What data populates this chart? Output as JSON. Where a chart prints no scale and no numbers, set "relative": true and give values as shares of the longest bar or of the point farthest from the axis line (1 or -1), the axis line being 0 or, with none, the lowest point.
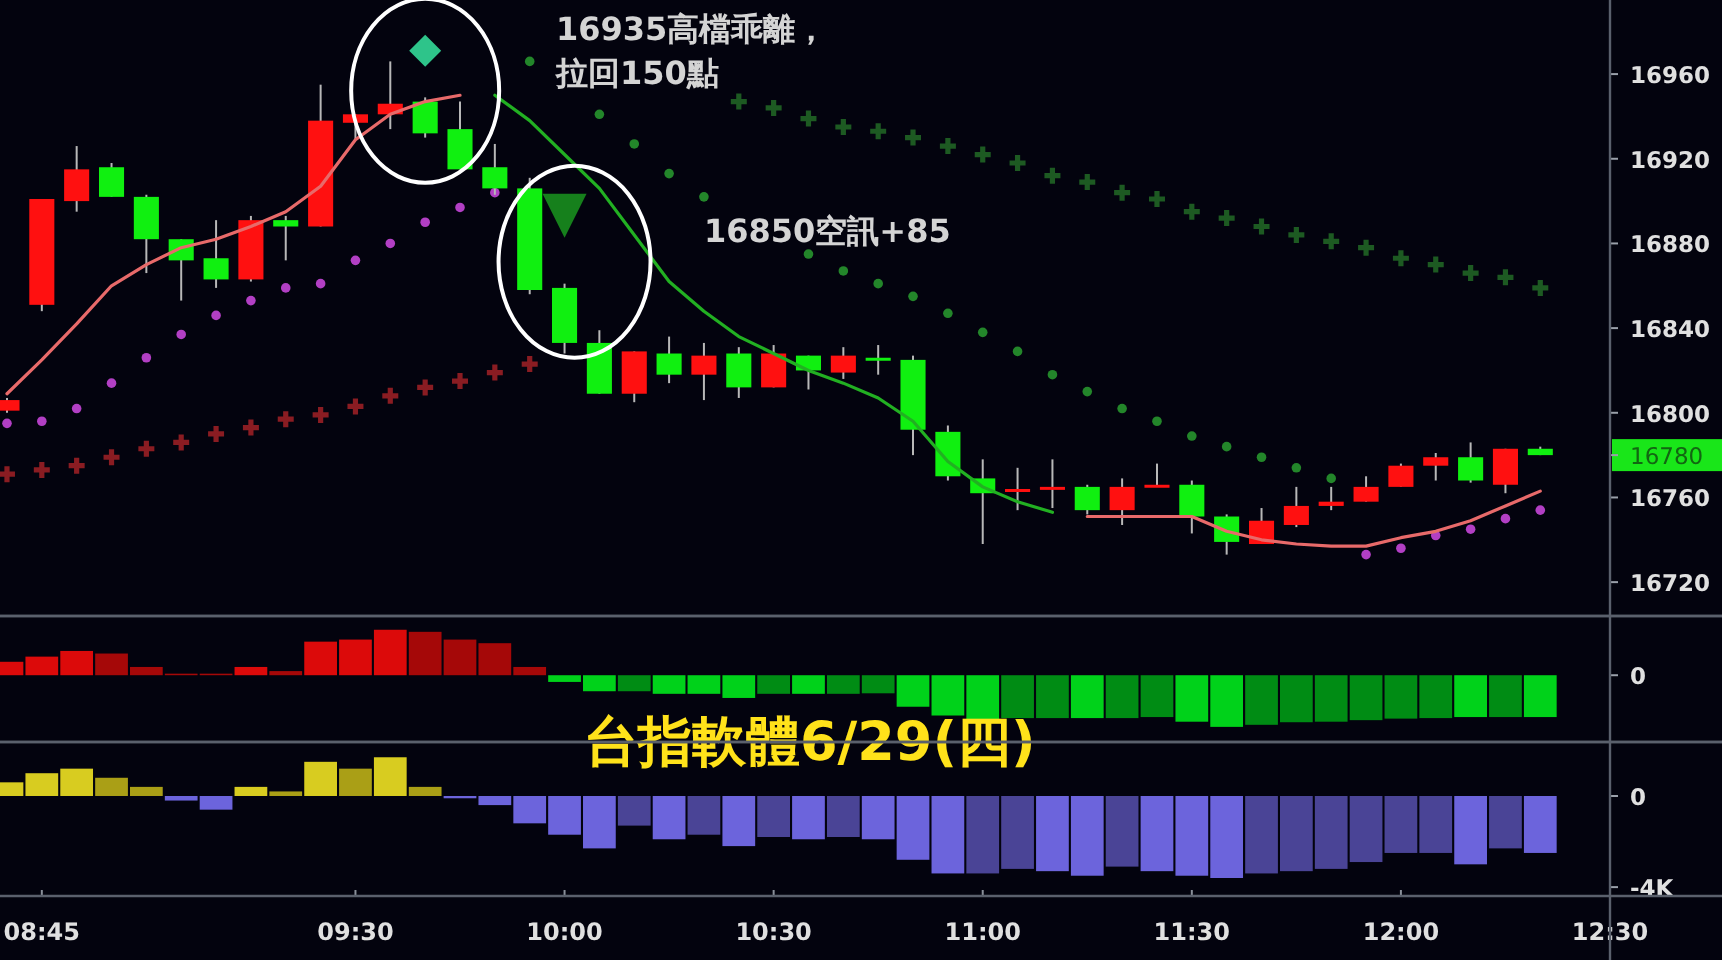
{
  "chart_data": [
    {
      "type": "candlestick",
      "x": [
        8.6667,
        8.75,
        8.8333,
        8.9167,
        9,
        9.0833,
        9.1667,
        9.25,
        9.3333,
        9.4167,
        9.5,
        9.5833,
        9.6667,
        9.75,
        9.8333,
        9.9167,
        10,
        10.0833,
        10.1667,
        10.25,
        10.3333,
        10.4167,
        10.5,
        10.5833,
        10.6667,
        10.75,
        10.8333,
        10.9167,
        11,
        11.0833,
        11.1667,
        11.25,
        11.3333,
        11.4167,
        11.5,
        11.5833,
        11.6667,
        11.75,
        11.8333,
        11.9167,
        12,
        12.0833,
        12.1667,
        12.25,
        12.3333
      ],
      "ohlc": [
        [
          16801,
          16807,
          16800,
          16806
        ],
        [
          16851,
          16901,
          16848,
          16901
        ],
        [
          16900,
          16926,
          16895,
          16915
        ],
        [
          16916,
          16918,
          16902,
          16902
        ],
        [
          16902,
          16903,
          16866,
          16882
        ],
        [
          16882,
          16882,
          16853,
          16872
        ],
        [
          16873,
          16891,
          16859,
          16863
        ],
        [
          16863,
          16893,
          16862,
          16891
        ],
        [
          16891,
          16893,
          16872,
          16888
        ],
        [
          16888,
          16955,
          16888,
          16938
        ],
        [
          16937,
          16941,
          16929,
          16941
        ],
        [
          16941,
          16966,
          16934,
          16946
        ],
        [
          16947,
          16949,
          16930,
          16932
        ],
        [
          16934,
          16947,
          16915,
          16915
        ],
        [
          16916,
          16927,
          16903,
          16906
        ],
        [
          16906,
          16911,
          16856,
          16858
        ],
        [
          16859,
          16861,
          16828,
          16833
        ],
        [
          16833,
          16839,
          16809,
          16809
        ],
        [
          16809,
          16829,
          16805,
          16829
        ],
        [
          16828,
          16836,
          16814,
          16818
        ],
        [
          16818,
          16833,
          16806,
          16827
        ],
        [
          16828,
          16831,
          16807,
          16812
        ],
        [
          16812,
          16832,
          16812,
          16828
        ],
        [
          16827,
          16827,
          16811,
          16820
        ],
        [
          16819,
          16831,
          16816,
          16827
        ],
        [
          16826,
          16832,
          16818,
          16825
        ],
        [
          16825,
          16827,
          16780,
          16792
        ],
        [
          16791,
          16794,
          16768,
          16770
        ],
        [
          16769,
          16778,
          16738,
          16762
        ],
        [
          16763,
          16774,
          16754,
          16764
        ],
        [
          16764,
          16778,
          16755,
          16765
        ],
        [
          16765,
          16766,
          16752,
          16754
        ],
        [
          16754,
          16769,
          16747,
          16765
        ],
        [
          16765,
          16776,
          16765,
          16766
        ],
        [
          16766,
          16768,
          16743,
          16751
        ],
        [
          16751,
          16752,
          16733,
          16739
        ],
        [
          16738,
          16755,
          16738,
          16749
        ],
        [
          16747,
          16765,
          16746,
          16756
        ],
        [
          16756,
          16765,
          16754,
          16758
        ],
        [
          16758,
          16770,
          16758,
          16765
        ],
        [
          16765,
          16776,
          16765,
          16775
        ],
        [
          16775,
          16781,
          16768,
          16779
        ],
        [
          16779,
          16786,
          16767,
          16768
        ],
        [
          16766,
          16783,
          16762,
          16783
        ],
        [
          16783,
          16784,
          16780,
          16780
        ]
      ],
      "colors": [
        "#ff1010",
        "#ff1010",
        "#ff1010",
        "#10f010",
        "#10f010",
        "#10f010",
        "#10f010",
        "#ff1010",
        "#10f010",
        "#ff1010",
        "#ff1010",
        "#ff1010",
        "#10f010",
        "#10f010",
        "#10f010",
        "#10f010",
        "#10f010",
        "#10f010",
        "#ff1010",
        "#10f010",
        "#ff1010",
        "#10f010",
        "#ff1010",
        "#10f010",
        "#ff1010",
        "#10f010",
        "#10f010",
        "#10f010",
        "#10f010",
        "#ff1010",
        "#ff1010",
        "#10f010",
        "#ff1010",
        "#ff1010",
        "#10f010",
        "#10f010",
        "#ff1010",
        "#ff1010",
        "#ff1010",
        "#ff1010",
        "#ff1010",
        "#ff1010",
        "#10f010",
        "#ff1010",
        "#10f010"
      ],
      "series": [
        {
          "type": "line",
          "color": "#e86a6a",
          "values": [
            16809,
            16825,
            16842,
            16860,
            16870,
            16878,
            16882,
            16888,
            16895,
            16907,
            16929,
            16941,
            16947,
            16950,
            null,
            null,
            null,
            null,
            null,
            null,
            null,
            null,
            null,
            null,
            null,
            null,
            null,
            null,
            null,
            null,
            null,
            16751,
            16751,
            16751,
            16751,
            16744,
            16740,
            16738,
            16737,
            16737,
            16741,
            16744,
            16749,
            16756,
            16763
          ]
        },
        {
          "type": "line",
          "color": "#22b022",
          "values": [
            null,
            null,
            null,
            null,
            null,
            null,
            null,
            null,
            null,
            null,
            null,
            null,
            null,
            null,
            16950,
            16938,
            16922,
            16906,
            16884,
            16862,
            16848,
            16836,
            16828,
            16820,
            16814,
            16807,
            16796,
            16777,
            16765,
            16758,
            16753,
            null,
            null,
            null,
            null,
            null,
            null,
            null,
            null,
            null,
            null,
            null,
            null,
            null,
            null
          ]
        },
        {
          "type": "scatter",
          "marker": "circle",
          "color": "#b23fc4",
          "values": [
            16795,
            16796,
            16802,
            16814,
            16826,
            16837,
            16846,
            16853,
            16859,
            16861,
            16872,
            16880,
            16890,
            16897,
            16904,
            null,
            null,
            null,
            null,
            null,
            null,
            null,
            null,
            null,
            null,
            null,
            null,
            null,
            null,
            null,
            null,
            null,
            null,
            null,
            null,
            null,
            null,
            null,
            null,
            16733,
            16736,
            16742,
            16745,
            16750,
            16754
          ]
        },
        {
          "type": "scatter",
          "marker": "cross",
          "color": "#8a1c22",
          "values": [
            16771,
            16773,
            16775,
            16779,
            16783,
            16786,
            16790,
            16793,
            16797,
            16799,
            16803,
            16808,
            16812,
            16815,
            16819,
            16823,
            null,
            null,
            null,
            null,
            null,
            null,
            null,
            null,
            null,
            null,
            null,
            null,
            null,
            null,
            null,
            null,
            null,
            null,
            null,
            null,
            null,
            null,
            null,
            null,
            null,
            null,
            null,
            null,
            null
          ]
        },
        {
          "type": "scatter",
          "marker": "circle",
          "color": "#23862a",
          "values": [
            null,
            null,
            null,
            null,
            null,
            null,
            null,
            null,
            null,
            null,
            null,
            null,
            null,
            null,
            null,
            16966,
            null,
            16941,
            16927,
            16913,
            16902,
            null,
            null,
            16875,
            16867,
            16861,
            16855,
            16847,
            16838,
            16829,
            16818,
            16810,
            16802,
            16796,
            16789,
            16784,
            16779,
            16774,
            16769,
            null,
            null,
            null,
            null,
            null,
            null
          ]
        },
        {
          "type": "scatter",
          "marker": "cross",
          "color": "#1d5a22",
          "values": [
            null,
            null,
            null,
            null,
            null,
            null,
            null,
            null,
            null,
            null,
            null,
            null,
            null,
            null,
            null,
            null,
            null,
            null,
            null,
            null,
            null,
            16947,
            16944,
            16939,
            16935,
            16933,
            16930,
            16926,
            16922,
            16918,
            16912,
            16909,
            16904,
            16901,
            16895,
            16892,
            16888,
            16884,
            16881,
            16878,
            16873,
            16870,
            16866,
            16864,
            16859
          ]
        },
        {
          "type": "scatter",
          "marker": "diamond",
          "color": "#2ec48a",
          "values": [
            null,
            null,
            null,
            null,
            null,
            null,
            null,
            null,
            null,
            null,
            null,
            null,
            16971,
            null,
            null,
            null,
            null,
            null,
            null,
            null,
            null,
            null,
            null,
            null,
            null,
            null,
            null,
            null,
            null,
            null,
            null,
            null,
            null,
            null,
            null,
            null,
            null,
            null,
            null,
            null,
            null,
            null,
            null,
            null,
            null
          ]
        },
        {
          "type": "scatter",
          "marker": "triangle",
          "color": "#16801c",
          "values": [
            null,
            null,
            null,
            null,
            null,
            null,
            null,
            null,
            null,
            null,
            null,
            null,
            null,
            null,
            null,
            null,
            16894,
            null,
            null,
            null,
            null,
            null,
            null,
            null,
            null,
            null,
            null,
            null,
            null,
            null,
            null,
            null,
            null,
            null,
            null,
            null,
            null,
            null,
            null,
            null,
            null,
            null,
            null,
            null,
            null
          ]
        }
      ],
      "xlim": [
        8.65,
        12.5
      ],
      "ylim": [
        16704,
        16995
      ],
      "yticks": [
        16720,
        16760,
        {
          "value": 16780,
          "label": "16780"
        },
        16800,
        16840,
        16880,
        16920,
        16960
      ],
      "tick_labels": "y",
      "annotations": [
        "16935高檔乖離，",
        "拉回150點",
        "16850空訊+85"
      ]
    },
    {
      "type": "bar",
      "relative": true,
      "x": [
        8.6667,
        8.75,
        8.8333,
        8.9167,
        9,
        9.0833,
        9.1667,
        9.25,
        9.3333,
        9.4167,
        9.5,
        9.5833,
        9.6667,
        9.75,
        9.8333,
        9.9167,
        10,
        10.0833,
        10.1667,
        10.25,
        10.3333,
        10.4167,
        10.5,
        10.5833,
        10.6667,
        10.75,
        10.8333,
        10.9167,
        11,
        11.0833,
        11.1667,
        11.25,
        11.3333,
        11.4167,
        11.5,
        11.5833,
        11.6667,
        11.75,
        11.8333,
        11.9167,
        12,
        12.0833,
        12.1667,
        12.25,
        12.3333
      ],
      "values": [
        0.26,
        0.36,
        0.47,
        0.42,
        0.16,
        0.03,
        0.03,
        0.16,
        0.08,
        0.65,
        0.69,
        0.88,
        0.84,
        0.69,
        0.62,
        0.16,
        -0.13,
        -0.31,
        -0.31,
        -0.36,
        -0.36,
        -0.44,
        -0.36,
        -0.36,
        -0.36,
        -0.35,
        -0.61,
        -0.78,
        -0.91,
        -0.83,
        -0.83,
        -0.83,
        -0.83,
        -0.81,
        -0.9,
        -1,
        -0.96,
        -0.91,
        -0.9,
        -0.87,
        -0.84,
        -0.83,
        -0.81,
        -0.81,
        -0.81
      ],
      "colors": [
        "#dc0a0a",
        "#dc0a0a",
        "#dc0a0a",
        "#a50808",
        "#a50808",
        "#a50808",
        "#a50808",
        "#dc0a0a",
        "#a50808",
        "#dc0a0a",
        "#dc0a0a",
        "#dc0a0a",
        "#a50808",
        "#a50808",
        "#a50808",
        "#a50808",
        "#00d21a",
        "#00d21a",
        "#008c14",
        "#00d21a",
        "#00d21a",
        "#00d21a",
        "#008c14",
        "#00d21a",
        "#008c14",
        "#008c14",
        "#00d21a",
        "#00d21a",
        "#00d21a",
        "#008c14",
        "#008c14",
        "#00d21a",
        "#008c14",
        "#008c14",
        "#00d21a",
        "#00d21a",
        "#008c14",
        "#008c14",
        "#008c14",
        "#008c14",
        "#008c14",
        "#008c14",
        "#00d21a",
        "#008c14",
        "#00d21a"
      ],
      "xlim": [
        8.65,
        12.5
      ],
      "tick_labels": "y",
      "annotations": [
        "0",
        "台指軟體6/29(四)"
      ]
    },
    {
      "type": "bar",
      "x": [
        8.6667,
        8.75,
        8.8333,
        8.9167,
        9,
        9.0833,
        9.1667,
        9.25,
        9.3333,
        9.4167,
        9.5,
        9.5833,
        9.6667,
        9.75,
        9.8333,
        9.9167,
        10,
        10.0833,
        10.1667,
        10.25,
        10.3333,
        10.4167,
        10.5,
        10.5833,
        10.6667,
        10.75,
        10.8333,
        10.9167,
        11,
        11.0833,
        11.1667,
        11.25,
        11.3333,
        11.4167,
        11.5,
        11.5833,
        11.6667,
        11.75,
        11.8333,
        11.9167,
        12,
        12.0833,
        12.1667,
        12.25,
        12.3333
      ],
      "values": [
        600,
        1000,
        1200,
        800,
        400,
        -200,
        -600,
        400,
        200,
        1500,
        1200,
        1700,
        400,
        -100,
        -400,
        -1200,
        -1700,
        -2300,
        -1300,
        -1900,
        -1700,
        -2200,
        -1800,
        -1900,
        -1800,
        -1900,
        -2800,
        -3400,
        -3400,
        -3200,
        -3300,
        -3500,
        -3100,
        -3300,
        -3500,
        -3600,
        -3400,
        -3300,
        -3200,
        -2900,
        -2500,
        -2500,
        -3000,
        -2300,
        -2500
      ],
      "colors": [
        "#d8cc20",
        "#d8cc20",
        "#d8cc20",
        "#aa9f16",
        "#aa9f16",
        "#6c64dc",
        "#6c64dc",
        "#d8cc20",
        "#aa9f16",
        "#d8cc20",
        "#aa9f16",
        "#d8cc20",
        "#aa9f16",
        "#6c64dc",
        "#6c64dc",
        "#6c64dc",
        "#6c64dc",
        "#6c64dc",
        "#4a4496",
        "#6c64dc",
        "#4a4496",
        "#6c64dc",
        "#4a4496",
        "#6c64dc",
        "#4a4496",
        "#6c64dc",
        "#6c64dc",
        "#6c64dc",
        "#4a4496",
        "#4a4496",
        "#6c64dc",
        "#6c64dc",
        "#4a4496",
        "#6c64dc",
        "#6c64dc",
        "#6c64dc",
        "#4a4496",
        "#4a4496",
        "#4a4496",
        "#4a4496",
        "#4a4496",
        "#4a4496",
        "#6c64dc",
        "#4a4496",
        "#6c64dc"
      ],
      "xlim": [
        8.65,
        12.5
      ],
      "xticks": [
        {
          "value": 8.75,
          "label": "08:45"
        },
        {
          "value": 9.5,
          "label": "09:30"
        },
        {
          "value": 10,
          "label": "10:00"
        },
        {
          "value": 10.5,
          "label": "10:30"
        },
        {
          "value": 11,
          "label": "11:00"
        },
        {
          "value": 11.5,
          "label": "11:30"
        },
        {
          "value": 12,
          "label": "12:00"
        },
        {
          "value": 12.5,
          "label": "12:30"
        }
      ],
      "ylim": [
        -4390,
        2370
      ],
      "yticks": [
        0,
        {
          "value": -4000,
          "label": "-4K"
        }
      ]
    }
  ]
}
